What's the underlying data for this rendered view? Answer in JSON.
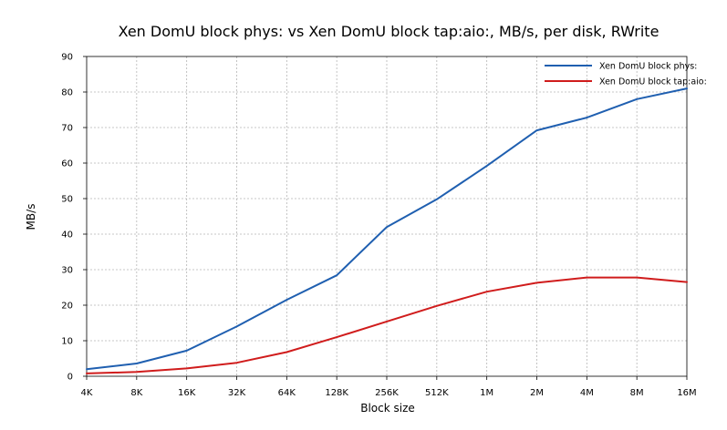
{
  "chart_data": {
    "type": "line",
    "title": "Xen DomU block phys: vs Xen DomU block tap:aio:, MB/s, per disk, RWrite",
    "xlabel": "Block size",
    "ylabel": "MB/s",
    "categories": [
      "4K",
      "8K",
      "16K",
      "32K",
      "64K",
      "128K",
      "256K",
      "512K",
      "1M",
      "2M",
      "4M",
      "8M",
      "16M"
    ],
    "ylim": [
      0,
      90
    ],
    "yticks": [
      0,
      10,
      20,
      30,
      40,
      50,
      60,
      70,
      80,
      90
    ],
    "grid": true,
    "legend_position": "top-right",
    "series": [
      {
        "name": "Xen DomU block phys:",
        "color": "#1f5fb0",
        "values": [
          2.0,
          3.6,
          7.2,
          14.0,
          21.5,
          28.4,
          42.0,
          49.8,
          59.2,
          69.2,
          72.8,
          78.0,
          81.0
        ]
      },
      {
        "name": "Xen DomU block tap:aio:",
        "color": "#d01c1c",
        "values": [
          0.8,
          1.2,
          2.2,
          3.8,
          6.8,
          11.0,
          15.4,
          19.8,
          23.8,
          26.3,
          27.8,
          27.8,
          26.5
        ]
      }
    ]
  }
}
